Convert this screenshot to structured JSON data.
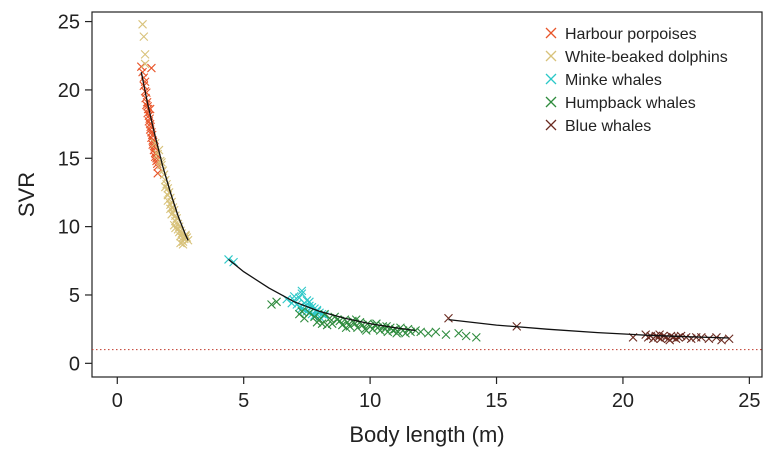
{
  "chart_data": {
    "type": "scatter",
    "title": "",
    "xlabel": "Body length (m)",
    "ylabel": "SVR",
    "xlim": [
      -1,
      25.5
    ],
    "ylim": [
      -1,
      25.7
    ],
    "xticks": [
      0,
      5,
      10,
      15,
      20,
      25
    ],
    "yticks": [
      0,
      5,
      10,
      15,
      20,
      25
    ],
    "xtick_labels": [
      "0",
      "5",
      "10",
      "15",
      "20",
      "25"
    ],
    "ytick_labels": [
      "0",
      "5",
      "10",
      "15",
      "20",
      "25"
    ],
    "grid": false,
    "legend_position": "top-right",
    "reference_line": {
      "y": 1,
      "style": "dotted",
      "color": "#c0392b"
    },
    "series": [
      {
        "name": "Harbour porpoises",
        "color": "#e8552a",
        "marker": "x",
        "x": [
          0.95,
          1.0,
          1.05,
          1.05,
          1.1,
          1.1,
          1.12,
          1.15,
          1.15,
          1.18,
          1.2,
          1.2,
          1.22,
          1.25,
          1.25,
          1.28,
          1.3,
          1.3,
          1.32,
          1.35,
          1.35,
          1.38,
          1.4,
          1.4,
          1.42,
          1.45,
          1.45,
          1.48,
          1.5,
          1.5,
          1.52,
          1.55,
          1.55,
          1.58,
          1.6,
          1.35,
          1.3,
          1.6
        ],
        "y": [
          21.7,
          21.3,
          20.9,
          20.3,
          20.6,
          19.9,
          19.4,
          19.8,
          18.9,
          19.1,
          18.8,
          18.3,
          18.6,
          18.1,
          17.7,
          17.9,
          17.5,
          17.1,
          17.3,
          16.9,
          16.5,
          16.7,
          16.3,
          16.0,
          16.2,
          15.9,
          15.6,
          15.8,
          15.4,
          15.1,
          15.3,
          15.0,
          14.8,
          14.6,
          14.4,
          21.6,
          18.6,
          13.9
        ]
      },
      {
        "name": "White-beaked dolphins",
        "color": "#d8c27a",
        "marker": "x",
        "x": [
          1.0,
          1.05,
          1.1,
          1.1,
          1.5,
          1.6,
          1.65,
          1.7,
          1.75,
          1.8,
          1.85,
          1.9,
          1.95,
          2.0,
          2.0,
          2.05,
          2.1,
          2.1,
          2.15,
          2.2,
          2.2,
          2.25,
          2.3,
          2.3,
          2.35,
          2.4,
          2.4,
          2.45,
          2.5,
          2.5,
          2.55,
          2.6,
          2.6,
          2.65,
          2.7,
          2.75,
          2.8,
          1.9,
          2.0,
          2.15,
          2.3,
          2.45,
          2.6,
          1.75,
          2.25,
          2.5,
          2.7,
          2.1
        ],
        "y": [
          24.8,
          23.9,
          22.6,
          21.9,
          16.1,
          15.3,
          15.6,
          14.8,
          14.5,
          14.1,
          13.8,
          13.4,
          13.1,
          12.8,
          12.3,
          12.5,
          12.1,
          11.6,
          11.8,
          11.4,
          11.0,
          11.2,
          10.8,
          10.4,
          10.6,
          10.2,
          9.8,
          10.0,
          9.7,
          9.3,
          9.5,
          9.2,
          8.9,
          9.1,
          9.4,
          9.2,
          9.0,
          12.9,
          11.9,
          10.9,
          9.9,
          9.6,
          8.7,
          14.7,
          10.1,
          8.8,
          9.3,
          11.3
        ]
      },
      {
        "name": "Minke whales",
        "color": "#2cc8c8",
        "marker": "x",
        "x": [
          4.4,
          4.6,
          6.7,
          6.9,
          7.0,
          7.1,
          7.2,
          7.2,
          7.3,
          7.3,
          7.4,
          7.4,
          7.5,
          7.5,
          7.6,
          7.6,
          7.7,
          7.7,
          7.8,
          7.8,
          7.9,
          8.0,
          8.0,
          8.1,
          8.2,
          7.0,
          7.3,
          7.6,
          7.9
        ],
        "y": [
          7.6,
          7.4,
          4.7,
          4.4,
          4.6,
          4.3,
          4.1,
          4.8,
          5.3,
          4.0,
          4.4,
          3.9,
          4.6,
          3.8,
          4.2,
          3.7,
          4.1,
          3.6,
          4.0,
          3.5,
          3.8,
          3.7,
          3.4,
          3.6,
          3.5,
          4.9,
          5.1,
          4.5,
          3.9
        ]
      },
      {
        "name": "Humpback whales",
        "color": "#2e8b3d",
        "marker": "x",
        "x": [
          6.1,
          6.3,
          7.2,
          7.4,
          7.6,
          7.8,
          8.0,
          8.2,
          8.4,
          8.5,
          8.6,
          8.8,
          8.9,
          9.0,
          9.1,
          9.2,
          9.3,
          9.4,
          9.5,
          9.6,
          9.7,
          9.8,
          9.9,
          10.0,
          10.1,
          10.2,
          10.3,
          10.4,
          10.5,
          10.6,
          10.7,
          10.8,
          10.9,
          11.0,
          11.1,
          11.2,
          11.3,
          11.4,
          11.5,
          11.6,
          11.8,
          12.0,
          12.3,
          12.6,
          13.0,
          13.5,
          13.8,
          14.2,
          8.3,
          8.7,
          9.05,
          9.45,
          9.85,
          10.25,
          10.65,
          11.05,
          7.3,
          7.9,
          8.1
        ],
        "y": [
          4.3,
          4.5,
          3.6,
          3.3,
          3.7,
          3.4,
          3.2,
          3.6,
          3.3,
          2.9,
          3.4,
          3.1,
          2.8,
          3.2,
          3.0,
          2.7,
          3.1,
          2.9,
          2.6,
          3.0,
          2.8,
          2.5,
          2.9,
          2.7,
          2.5,
          2.8,
          2.6,
          2.4,
          2.7,
          2.5,
          2.3,
          2.6,
          2.4,
          2.5,
          2.3,
          2.6,
          2.4,
          2.2,
          2.5,
          2.3,
          2.4,
          2.3,
          2.2,
          2.3,
          2.1,
          2.2,
          2.0,
          1.9,
          2.8,
          3.2,
          2.6,
          3.2,
          2.4,
          2.9,
          2.7,
          2.2,
          3.8,
          3.0,
          2.9
        ]
      },
      {
        "name": "Blue whales",
        "color": "#6a2a20",
        "marker": "x",
        "x": [
          13.1,
          15.8,
          20.4,
          20.9,
          21.0,
          21.1,
          21.2,
          21.3,
          21.4,
          21.5,
          21.6,
          21.7,
          21.8,
          21.9,
          22.0,
          22.1,
          22.2,
          22.3,
          22.5,
          22.7,
          22.9,
          23.1,
          23.4,
          23.7,
          23.9,
          24.2,
          21.45,
          21.85
        ],
        "y": [
          3.3,
          2.7,
          1.9,
          2.1,
          1.9,
          2.0,
          1.8,
          2.0,
          1.9,
          1.8,
          2.0,
          1.9,
          1.8,
          2.0,
          1.9,
          1.8,
          1.9,
          2.0,
          1.9,
          1.8,
          1.9,
          1.9,
          1.8,
          1.9,
          1.7,
          1.8,
          2.1,
          1.7
        ]
      }
    ],
    "fit_lines": [
      {
        "x": [
          0.95,
          1.2,
          1.5,
          1.8,
          2.1,
          2.4,
          2.7,
          2.8
        ],
        "y": [
          21.3,
          19.0,
          16.6,
          14.4,
          12.5,
          10.8,
          9.4,
          9.0
        ]
      },
      {
        "x": [
          4.4,
          5,
          6,
          7,
          8,
          9,
          10,
          11,
          11.8
        ],
        "y": [
          7.6,
          6.7,
          5.5,
          4.5,
          3.8,
          3.3,
          2.9,
          2.6,
          2.4
        ]
      },
      {
        "x": [
          13.1,
          15,
          17,
          19,
          21,
          22.5,
          24.2
        ],
        "y": [
          3.2,
          2.8,
          2.5,
          2.25,
          2.05,
          1.95,
          1.85
        ]
      }
    ]
  }
}
